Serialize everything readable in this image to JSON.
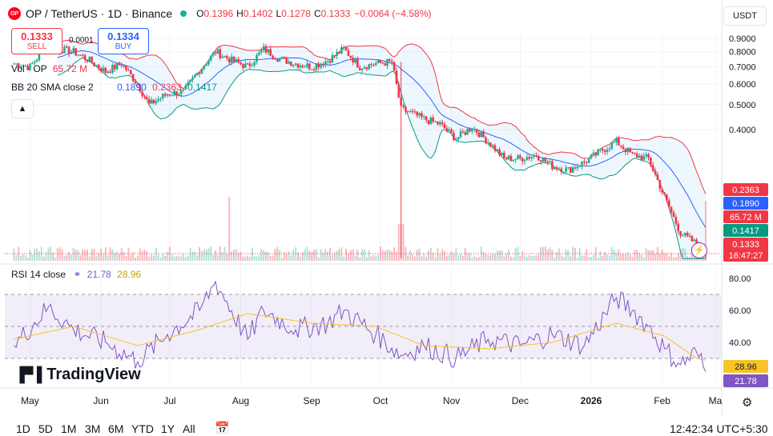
{
  "header": {
    "symbol": "OP / TetherUS · 1D · Binance",
    "logo": "OP",
    "open_label": "O",
    "open": "0.1396",
    "high_label": "H",
    "high": "0.1402",
    "low_label": "L",
    "low": "0.1278",
    "close_label": "C",
    "close": "0.1333",
    "change": "−0.0064 (−4.58%)"
  },
  "trade": {
    "sell_price": "0.1333",
    "sell_label": "SELL",
    "spread": "0.0001",
    "buy_price": "0.1334",
    "buy_label": "BUY"
  },
  "indicators": {
    "vol_label": "Vol · OP",
    "vol_value": "65.72 M",
    "bb_label": "BB 20 SMA close 2",
    "bb_basis": "0.1890",
    "bb_upper": "0.2363",
    "bb_lower": "0.1417",
    "rsi_label": "RSI 14 close",
    "rsi_value": "21.78",
    "rsi_ma": "28.96"
  },
  "currency": "USDT",
  "brand": "TradingView",
  "range_buttons": [
    "1D",
    "5D",
    "1M",
    "3M",
    "6M",
    "YTD",
    "1Y",
    "All"
  ],
  "clock": "12:42:34 UTC+5:30",
  "price_axis": {
    "badges": {
      "bb_upper": "0.2363",
      "bb_basis": "0.1890",
      "volume": "65.72 M",
      "bb_lower": "0.1417",
      "last": "0.1333",
      "countdown": "16:47:27"
    }
  },
  "rsi_axis": {
    "badges": {
      "ma": "28.96",
      "rsi": "21.78"
    }
  },
  "colors": {
    "up": "#22ab94",
    "down": "#f23645",
    "basis": "#2962ff",
    "upper": "#f23645",
    "lower": "#089981",
    "rsi": "#7e57c2",
    "rsi_ma": "#f7c325"
  },
  "chart_data": [
    {
      "type": "candlestick",
      "title": "OP / TetherUS · 1D · Binance",
      "x_ticks": [
        "May",
        "Jun",
        "Jul",
        "Aug",
        "Sep",
        "Oct",
        "Nov",
        "Dec",
        "2026",
        "Feb",
        "Ma"
      ],
      "y_scale": "log",
      "y_ticks": [
        "0.9000",
        "0.8000",
        "0.7000",
        "0.6000",
        "0.5000",
        "0.4000"
      ],
      "ylim": [
        0.125,
        0.98
      ],
      "close_series": [
        {
          "x": "2025-04-24",
          "y": 0.72
        },
        {
          "x": "2025-05-01",
          "y": 0.7
        },
        {
          "x": "2025-05-09",
          "y": 0.85
        },
        {
          "x": "2025-05-13",
          "y": 0.82
        },
        {
          "x": "2025-05-20",
          "y": 0.8
        },
        {
          "x": "2025-05-27",
          "y": 0.74
        },
        {
          "x": "2025-06-03",
          "y": 0.67
        },
        {
          "x": "2025-06-10",
          "y": 0.72
        },
        {
          "x": "2025-06-17",
          "y": 0.6
        },
        {
          "x": "2025-06-22",
          "y": 0.5
        },
        {
          "x": "2025-06-30",
          "y": 0.55
        },
        {
          "x": "2025-07-07",
          "y": 0.56
        },
        {
          "x": "2025-07-14",
          "y": 0.68
        },
        {
          "x": "2025-07-21",
          "y": 0.8
        },
        {
          "x": "2025-07-28",
          "y": 0.74
        },
        {
          "x": "2025-08-04",
          "y": 0.7
        },
        {
          "x": "2025-08-11",
          "y": 0.82
        },
        {
          "x": "2025-08-18",
          "y": 0.75
        },
        {
          "x": "2025-08-25",
          "y": 0.72
        },
        {
          "x": "2025-09-01",
          "y": 0.7
        },
        {
          "x": "2025-09-08",
          "y": 0.74
        },
        {
          "x": "2025-09-15",
          "y": 0.82
        },
        {
          "x": "2025-09-22",
          "y": 0.7
        },
        {
          "x": "2025-09-29",
          "y": 0.72
        },
        {
          "x": "2025-10-06",
          "y": 0.73
        },
        {
          "x": "2025-10-10",
          "y": 0.48
        },
        {
          "x": "2025-10-13",
          "y": 0.47
        },
        {
          "x": "2025-10-20",
          "y": 0.44
        },
        {
          "x": "2025-10-27",
          "y": 0.42
        },
        {
          "x": "2025-11-03",
          "y": 0.37
        },
        {
          "x": "2025-11-10",
          "y": 0.41
        },
        {
          "x": "2025-11-17",
          "y": 0.36
        },
        {
          "x": "2025-11-24",
          "y": 0.31
        },
        {
          "x": "2025-12-01",
          "y": 0.31
        },
        {
          "x": "2025-12-08",
          "y": 0.32
        },
        {
          "x": "2025-12-15",
          "y": 0.29
        },
        {
          "x": "2025-12-22",
          "y": 0.28
        },
        {
          "x": "2025-12-29",
          "y": 0.3
        },
        {
          "x": "2026-01-05",
          "y": 0.33
        },
        {
          "x": "2026-01-12",
          "y": 0.36
        },
        {
          "x": "2026-01-19",
          "y": 0.32
        },
        {
          "x": "2026-01-26",
          "y": 0.31
        },
        {
          "x": "2026-02-02",
          "y": 0.22
        },
        {
          "x": "2026-02-09",
          "y": 0.16
        },
        {
          "x": "2026-02-16",
          "y": 0.145
        },
        {
          "x": "2026-02-20",
          "y": 0.1333
        }
      ],
      "bollinger": {
        "period": 20,
        "stddev": 2,
        "basis": 0.189,
        "upper": 0.2363,
        "lower": 0.1417
      },
      "last": {
        "open": 0.1396,
        "high": 0.1402,
        "low": 0.1278,
        "close": 0.1333
      }
    },
    {
      "type": "line",
      "title": "RSI 14 close",
      "y_ticks": [
        "80.00",
        "60.00",
        "40.00"
      ],
      "ylim": [
        15,
        84
      ],
      "levels": [
        70,
        50,
        30
      ],
      "series": [
        {
          "name": "RSI",
          "values": [
            {
              "x": "2025-04-24",
              "y": 38
            },
            {
              "x": "2025-05-09",
              "y": 62
            },
            {
              "x": "2025-05-20",
              "y": 48
            },
            {
              "x": "2025-06-03",
              "y": 40
            },
            {
              "x": "2025-06-17",
              "y": 28
            },
            {
              "x": "2025-06-30",
              "y": 45
            },
            {
              "x": "2025-07-14",
              "y": 60
            },
            {
              "x": "2025-07-21",
              "y": 78
            },
            {
              "x": "2025-08-04",
              "y": 42
            },
            {
              "x": "2025-08-11",
              "y": 60
            },
            {
              "x": "2025-08-25",
              "y": 48
            },
            {
              "x": "2025-09-08",
              "y": 52
            },
            {
              "x": "2025-09-15",
              "y": 60
            },
            {
              "x": "2025-09-29",
              "y": 45
            },
            {
              "x": "2025-10-10",
              "y": 32
            },
            {
              "x": "2025-10-20",
              "y": 38
            },
            {
              "x": "2025-11-03",
              "y": 30
            },
            {
              "x": "2025-11-17",
              "y": 42
            },
            {
              "x": "2025-12-01",
              "y": 38
            },
            {
              "x": "2025-12-15",
              "y": 45
            },
            {
              "x": "2025-12-29",
              "y": 38
            },
            {
              "x": "2026-01-12",
              "y": 68
            },
            {
              "x": "2026-01-19",
              "y": 60
            },
            {
              "x": "2026-01-26",
              "y": 50
            },
            {
              "x": "2026-02-02",
              "y": 36
            },
            {
              "x": "2026-02-09",
              "y": 26
            },
            {
              "x": "2026-02-16",
              "y": 34
            },
            {
              "x": "2026-02-20",
              "y": 21.78
            }
          ]
        },
        {
          "name": "RSI MA",
          "values": [
            {
              "x": "2025-04-24",
              "y": 42
            },
            {
              "x": "2025-05-20",
              "y": 50
            },
            {
              "x": "2025-06-17",
              "y": 38
            },
            {
              "x": "2025-07-14",
              "y": 48
            },
            {
              "x": "2025-08-04",
              "y": 58
            },
            {
              "x": "2025-09-01",
              "y": 52
            },
            {
              "x": "2025-09-29",
              "y": 50
            },
            {
              "x": "2025-10-20",
              "y": 38
            },
            {
              "x": "2025-11-17",
              "y": 36
            },
            {
              "x": "2025-12-15",
              "y": 40
            },
            {
              "x": "2026-01-12",
              "y": 52
            },
            {
              "x": "2026-02-02",
              "y": 44
            },
            {
              "x": "2026-02-16",
              "y": 30
            },
            {
              "x": "2026-02-20",
              "y": 28.96
            }
          ]
        }
      ]
    }
  ]
}
